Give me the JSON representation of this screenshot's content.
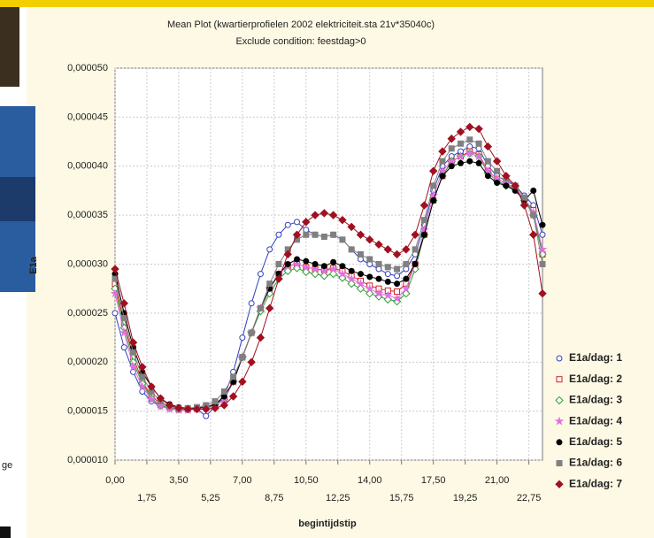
{
  "side_text": "ge",
  "chart_data": {
    "type": "line",
    "title": "Mean Plot (kwartierprofielen 2002 elektriciteit.sta 21v*35040c)",
    "subtitle": "Exclude condition: feestdag>0",
    "x_label": "begintijdstip",
    "y_label": "E1a",
    "x": [
      0,
      0.5,
      1,
      1.5,
      2,
      2.5,
      3,
      3.5,
      4,
      4.5,
      5,
      5.5,
      6,
      6.5,
      7,
      7.5,
      8,
      8.5,
      9,
      9.5,
      10,
      10.5,
      11,
      11.5,
      12,
      12.5,
      13,
      13.5,
      14,
      14.5,
      15,
      15.5,
      16,
      16.5,
      17,
      17.5,
      18,
      18.5,
      19,
      19.5,
      20,
      20.5,
      21,
      21.5,
      22,
      22.5,
      23,
      23.5
    ],
    "xlim": [
      0,
      23.5
    ],
    "xticks": [
      {
        "value": 0,
        "label": "0,00"
      },
      {
        "value": 1.75,
        "label": "1,75"
      },
      {
        "value": 3.5,
        "label": "3,50"
      },
      {
        "value": 5.25,
        "label": "5,25"
      },
      {
        "value": 7,
        "label": "7,00"
      },
      {
        "value": 8.75,
        "label": "8,75"
      },
      {
        "value": 10.5,
        "label": "10,50"
      },
      {
        "value": 12.25,
        "label": "12,25"
      },
      {
        "value": 14,
        "label": "14,00"
      },
      {
        "value": 15.75,
        "label": "15,75"
      },
      {
        "value": 17.5,
        "label": "17,50"
      },
      {
        "value": 19.25,
        "label": "19,25"
      },
      {
        "value": 21,
        "label": "21,00"
      },
      {
        "value": 22.75,
        "label": "22,75"
      }
    ],
    "ylim": [
      1e-05,
      5e-05
    ],
    "yticks": [
      {
        "value": 1e-05,
        "label": "0,000010"
      },
      {
        "value": 1.5e-05,
        "label": "0,000015"
      },
      {
        "value": 2e-05,
        "label": "0,000020"
      },
      {
        "value": 2.5e-05,
        "label": "0,000025"
      },
      {
        "value": 3e-05,
        "label": "0,000030"
      },
      {
        "value": 3.5e-05,
        "label": "0,000035"
      },
      {
        "value": 4e-05,
        "label": "0,000040"
      },
      {
        "value": 4.5e-05,
        "label": "0,000045"
      },
      {
        "value": 5e-05,
        "label": "0,000050"
      }
    ],
    "grid": true,
    "legend": "right",
    "series": [
      {
        "name": "E1a/dag: 1",
        "color": "#3040c0",
        "marker": "circle-open",
        "values": [
          2.5e-05,
          2.15e-05,
          1.9e-05,
          1.7e-05,
          1.6e-05,
          1.55e-05,
          1.53e-05,
          1.52e-05,
          1.52e-05,
          1.52e-05,
          1.45e-05,
          1.55e-05,
          1.65e-05,
          1.9e-05,
          2.25e-05,
          2.6e-05,
          2.9e-05,
          3.15e-05,
          3.3e-05,
          3.4e-05,
          3.43e-05,
          3.35e-05,
          3.3e-05,
          3.28e-05,
          3.3e-05,
          3.25e-05,
          3.15e-05,
          3.05e-05,
          3e-05,
          2.95e-05,
          2.9e-05,
          2.88e-05,
          2.95e-05,
          3.1e-05,
          3.4e-05,
          3.75e-05,
          4e-05,
          4.1e-05,
          4.15e-05,
          4.2e-05,
          4.18e-05,
          4e-05,
          3.9e-05,
          3.85e-05,
          3.8e-05,
          3.7e-05,
          3.6e-05,
          3.3e-05
        ]
      },
      {
        "name": "E1a/dag: 2",
        "color": "#d02020",
        "marker": "square-open",
        "values": [
          2.8e-05,
          2.4e-05,
          2.05e-05,
          1.8e-05,
          1.65e-05,
          1.58e-05,
          1.54e-05,
          1.52e-05,
          1.52e-05,
          1.53e-05,
          1.54e-05,
          1.56e-05,
          1.62e-05,
          1.8e-05,
          2.05e-05,
          2.3e-05,
          2.55e-05,
          2.75e-05,
          2.9e-05,
          2.98e-05,
          3e-05,
          2.97e-05,
          2.95e-05,
          2.94e-05,
          2.96e-05,
          2.93e-05,
          2.88e-05,
          2.83e-05,
          2.78e-05,
          2.75e-05,
          2.73e-05,
          2.72e-05,
          2.8e-05,
          3e-05,
          3.3e-05,
          3.65e-05,
          3.9e-05,
          4.05e-05,
          4.1e-05,
          4.15e-05,
          4.12e-05,
          3.95e-05,
          3.87e-05,
          3.82e-05,
          3.78e-05,
          3.65e-05,
          3.55e-05,
          3.1e-05
        ]
      },
      {
        "name": "E1a/dag: 3",
        "color": "#30a030",
        "marker": "diamond-open",
        "values": [
          2.75e-05,
          2.35e-05,
          2e-05,
          1.78e-05,
          1.63e-05,
          1.56e-05,
          1.53e-05,
          1.52e-05,
          1.52e-05,
          1.53e-05,
          1.54e-05,
          1.56e-05,
          1.62e-05,
          1.8e-05,
          2.05e-05,
          2.3e-05,
          2.52e-05,
          2.7e-05,
          2.85e-05,
          2.93e-05,
          2.96e-05,
          2.92e-05,
          2.9e-05,
          2.88e-05,
          2.9e-05,
          2.86e-05,
          2.8e-05,
          2.75e-05,
          2.7e-05,
          2.67e-05,
          2.64e-05,
          2.62e-05,
          2.7e-05,
          2.95e-05,
          3.3e-05,
          3.65e-05,
          3.9e-05,
          4.05e-05,
          4.1e-05,
          4.13e-05,
          4.1e-05,
          3.93e-05,
          3.85e-05,
          3.8e-05,
          3.77e-05,
          3.65e-05,
          3.5e-05,
          3.1e-05
        ]
      },
      {
        "name": "E1a/dag: 4",
        "color": "#e070e0",
        "marker": "star",
        "values": [
          2.7e-05,
          2.3e-05,
          1.95e-05,
          1.75e-05,
          1.62e-05,
          1.55e-05,
          1.52e-05,
          1.51e-05,
          1.51e-05,
          1.52e-05,
          1.53e-05,
          1.55e-05,
          1.62e-05,
          1.8e-05,
          2.05e-05,
          2.3e-05,
          2.55e-05,
          2.75e-05,
          2.9e-05,
          2.98e-05,
          3e-05,
          2.97e-05,
          2.95e-05,
          2.93e-05,
          2.95e-05,
          2.9e-05,
          2.85e-05,
          2.8e-05,
          2.75e-05,
          2.7e-05,
          2.68e-05,
          2.65e-05,
          2.75e-05,
          3e-05,
          3.35e-05,
          3.7e-05,
          3.95e-05,
          4.05e-05,
          4.1e-05,
          4.13e-05,
          4.1e-05,
          3.95e-05,
          3.87e-05,
          3.82e-05,
          3.78e-05,
          3.66e-05,
          3.53e-05,
          3.15e-05
        ]
      },
      {
        "name": "E1a/dag: 5",
        "color": "#000000",
        "marker": "circle",
        "values": [
          2.9e-05,
          2.5e-05,
          2.15e-05,
          1.9e-05,
          1.75e-05,
          1.63e-05,
          1.57e-05,
          1.54e-05,
          1.53e-05,
          1.53e-05,
          1.54e-05,
          1.57e-05,
          1.65e-05,
          1.8e-05,
          2.05e-05,
          2.3e-05,
          2.55e-05,
          2.75e-05,
          2.9e-05,
          3e-05,
          3.05e-05,
          3.03e-05,
          3e-05,
          2.98e-05,
          3.02e-05,
          2.98e-05,
          2.93e-05,
          2.9e-05,
          2.87e-05,
          2.85e-05,
          2.82e-05,
          2.8e-05,
          2.85e-05,
          3e-05,
          3.3e-05,
          3.65e-05,
          3.9e-05,
          4e-05,
          4.03e-05,
          4.05e-05,
          4.03e-05,
          3.9e-05,
          3.83e-05,
          3.8e-05,
          3.75e-05,
          3.65e-05,
          3.75e-05,
          3.4e-05
        ]
      },
      {
        "name": "E1a/dag: 6",
        "color": "#808080",
        "marker": "square",
        "values": [
          2.85e-05,
          2.45e-05,
          2.1e-05,
          1.85e-05,
          1.7e-05,
          1.6e-05,
          1.55e-05,
          1.53e-05,
          1.53e-05,
          1.54e-05,
          1.56e-05,
          1.6e-05,
          1.7e-05,
          1.85e-05,
          2.05e-05,
          2.3e-05,
          2.55e-05,
          2.8e-05,
          3e-05,
          3.15e-05,
          3.25e-05,
          3.3e-05,
          3.3e-05,
          3.28e-05,
          3.3e-05,
          3.25e-05,
          3.15e-05,
          3.1e-05,
          3.05e-05,
          3e-05,
          2.97e-05,
          2.95e-05,
          3e-05,
          3.15e-05,
          3.45e-05,
          3.8e-05,
          4.05e-05,
          4.18e-05,
          4.23e-05,
          4.27e-05,
          4.23e-05,
          4.05e-05,
          3.95e-05,
          3.87e-05,
          3.8e-05,
          3.68e-05,
          3.5e-05,
          3e-05
        ]
      },
      {
        "name": "E1a/dag: 7",
        "color": "#a01020",
        "marker": "diamond",
        "values": [
          2.95e-05,
          2.6e-05,
          2.2e-05,
          1.95e-05,
          1.75e-05,
          1.63e-05,
          1.56e-05,
          1.53e-05,
          1.52e-05,
          1.52e-05,
          1.52e-05,
          1.53e-05,
          1.56e-05,
          1.65e-05,
          1.8e-05,
          2e-05,
          2.25e-05,
          2.55e-05,
          2.85e-05,
          3.1e-05,
          3.3e-05,
          3.43e-05,
          3.5e-05,
          3.52e-05,
          3.5e-05,
          3.45e-05,
          3.38e-05,
          3.3e-05,
          3.25e-05,
          3.2e-05,
          3.15e-05,
          3.1e-05,
          3.15e-05,
          3.3e-05,
          3.6e-05,
          3.95e-05,
          4.15e-05,
          4.28e-05,
          4.35e-05,
          4.4e-05,
          4.38e-05,
          4.2e-05,
          4.05e-05,
          3.9e-05,
          3.8e-05,
          3.6e-05,
          3.3e-05,
          2.7e-05
        ]
      }
    ]
  }
}
